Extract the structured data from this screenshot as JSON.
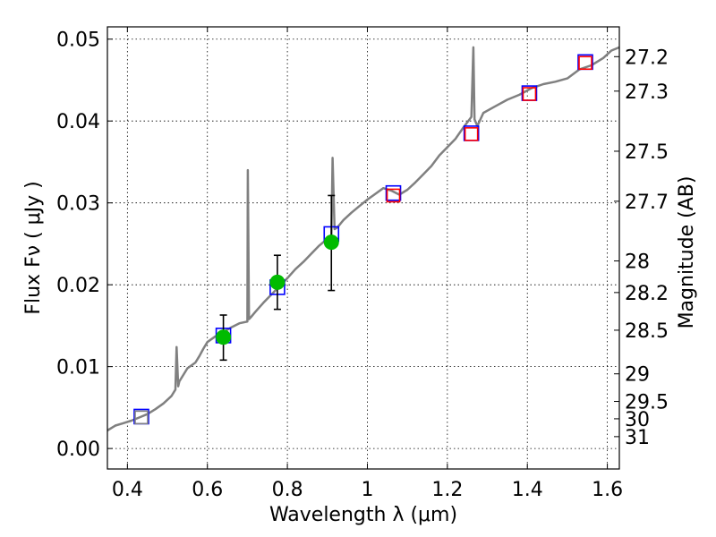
{
  "chart_data": {
    "type": "scatter",
    "xlabel": "Wavelength  λ (μm)",
    "ylabel": "Flux  Fν  ( μJy )",
    "ylabel_right": "Magnitude (AB)",
    "xlim": [
      0.35,
      1.63
    ],
    "ylim": [
      -0.0025,
      0.0515
    ],
    "grid": true,
    "x_ticks": [
      0.4,
      0.6,
      0.8,
      1,
      1.2,
      1.4,
      1.6
    ],
    "x_tick_labels": [
      "0.4",
      "0.6",
      "0.8",
      "1",
      "1.2",
      "1.4",
      "1.6"
    ],
    "y_ticks": [
      0.0,
      0.01,
      0.02,
      0.03,
      0.04,
      0.05
    ],
    "y_tick_labels": [
      "0.00",
      "0.01",
      "0.02",
      "0.03",
      "0.04",
      "0.05"
    ],
    "magnitude_ticks": [
      {
        "label": "27.2",
        "flux": 0.04786
      },
      {
        "label": "27.3",
        "flux": 0.04365
      },
      {
        "label": "27.5",
        "flux": 0.03631
      },
      {
        "label": "27.7",
        "flux": 0.0302
      },
      {
        "label": "28",
        "flux": 0.02291
      },
      {
        "label": "28.2",
        "flux": 0.01905
      },
      {
        "label": "28.5",
        "flux": 0.01445
      },
      {
        "label": "29",
        "flux": 0.00912
      },
      {
        "label": "29.5",
        "flux": 0.00575
      },
      {
        "label": "30",
        "flux": 0.00363
      },
      {
        "label": "31",
        "flux": 0.00145
      }
    ],
    "series": [
      {
        "type": "line",
        "color": "#808080",
        "x": [
          0.35,
          0.37,
          0.39,
          0.41,
          0.43,
          0.45,
          0.47,
          0.49,
          0.51,
          0.52,
          0.523,
          0.527,
          0.53,
          0.55,
          0.57,
          0.58,
          0.59,
          0.6,
          0.62,
          0.64,
          0.66,
          0.68,
          0.7,
          0.701,
          0.704,
          0.708,
          0.72,
          0.74,
          0.76,
          0.78,
          0.8,
          0.82,
          0.84,
          0.86,
          0.88,
          0.9,
          0.91,
          0.913,
          0.918,
          0.925,
          0.94,
          0.96,
          0.98,
          1.0,
          1.02,
          1.04,
          1.06,
          1.08,
          1.1,
          1.12,
          1.14,
          1.16,
          1.18,
          1.2,
          1.22,
          1.24,
          1.26,
          1.265,
          1.268,
          1.275,
          1.29,
          1.32,
          1.35,
          1.38,
          1.41,
          1.44,
          1.47,
          1.5,
          1.53,
          1.56,
          1.59,
          1.61,
          1.63
        ],
        "y": [
          0.0022,
          0.0028,
          0.0031,
          0.0034,
          0.0038,
          0.0042,
          0.0048,
          0.0055,
          0.0064,
          0.0072,
          0.0124,
          0.0076,
          0.0082,
          0.0098,
          0.0105,
          0.0113,
          0.0122,
          0.013,
          0.0137,
          0.0142,
          0.0148,
          0.0153,
          0.0155,
          0.034,
          0.0158,
          0.016,
          0.0167,
          0.0178,
          0.0188,
          0.0198,
          0.0208,
          0.0219,
          0.0228,
          0.0238,
          0.0248,
          0.0256,
          0.0258,
          0.0355,
          0.0268,
          0.027,
          0.0279,
          0.0288,
          0.0296,
          0.0304,
          0.0311,
          0.0318,
          0.0315,
          0.031,
          0.0316,
          0.0325,
          0.0335,
          0.0345,
          0.0358,
          0.0368,
          0.0378,
          0.0392,
          0.0405,
          0.049,
          0.0402,
          0.0394,
          0.041,
          0.0418,
          0.0426,
          0.0432,
          0.044,
          0.0445,
          0.0448,
          0.0452,
          0.0463,
          0.0468,
          0.0477,
          0.0486,
          0.049
        ]
      },
      {
        "type": "scatter",
        "marker": "square",
        "edge_color": "#0000ff",
        "x": [
          0.435,
          0.64,
          0.775,
          0.91,
          1.065,
          1.26,
          1.405,
          1.545
        ],
        "y": [
          0.0039,
          0.0138,
          0.0197,
          0.0262,
          0.0312,
          0.0385,
          0.0434,
          0.0472
        ]
      },
      {
        "type": "scatter",
        "marker": "square",
        "edge_color": "#ff0000",
        "x": [
          1.065,
          1.26,
          1.405,
          1.545
        ],
        "y": [
          0.0309,
          0.0384,
          0.0433,
          0.0471
        ]
      },
      {
        "type": "scatter",
        "marker": "square",
        "edge_color": "#808080",
        "x": [
          0.435
        ],
        "y": [
          0.0038
        ]
      },
      {
        "type": "errorbar",
        "marker": "circle",
        "color": "#00bb00",
        "error_color": "#000000",
        "x": [
          0.64,
          0.775,
          0.91
        ],
        "y": [
          0.0136,
          0.0203,
          0.0252
        ],
        "yerr_low": [
          0.0108,
          0.017,
          0.0193
        ],
        "yerr_high": [
          0.0163,
          0.0236,
          0.0309
        ]
      }
    ]
  }
}
